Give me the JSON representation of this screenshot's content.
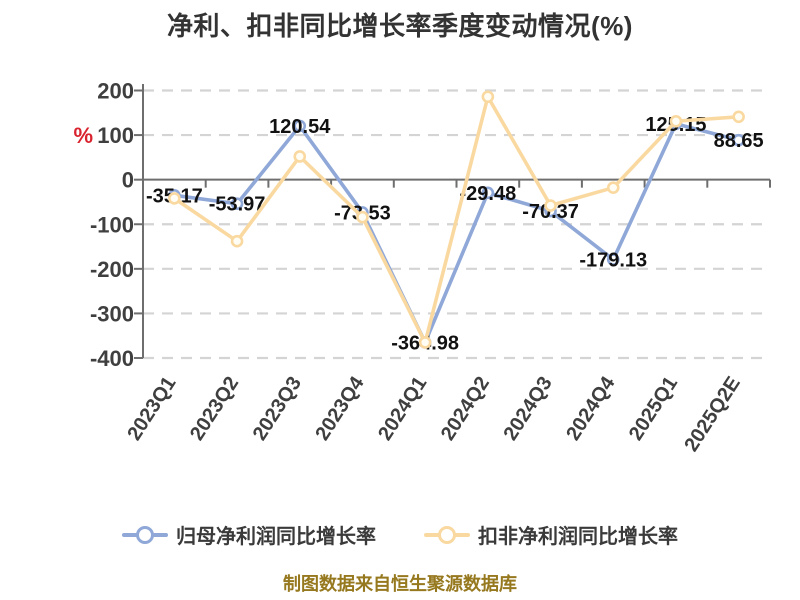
{
  "title": "净利、扣非同比增长率季度变动情况(%)",
  "footer": "制图数据来自恒生聚源数据库",
  "chart_data": {
    "type": "line",
    "title": "净利、扣非同比增长率季度变动情况(%)",
    "categories": [
      "2023Q1",
      "2023Q2",
      "2023Q3",
      "2023Q4",
      "2024Q1",
      "2024Q2",
      "2024Q3",
      "2024Q4",
      "2025Q1",
      "2025Q2E"
    ],
    "series": [
      {
        "name": "归母净利润同比增长率",
        "color": "#8FA8D8",
        "marker_fill": "#FFFFFF",
        "show_labels": true,
        "values": [
          -35.17,
          -53.97,
          120.54,
          -73.53,
          -364.98,
          -29.48,
          -70.37,
          -179.13,
          125.15,
          88.65
        ]
      },
      {
        "name": "扣非净利润同比增长率",
        "color": "#FAD9A1",
        "marker_fill": "#FFFDF4",
        "show_labels": false,
        "values": [
          -42,
          -138,
          52,
          -84,
          -365,
          186,
          -58,
          -18,
          131,
          141
        ]
      }
    ],
    "ylim": [
      -400,
      200
    ],
    "y_ticks": [
      200,
      100,
      0,
      -100,
      -200,
      -300,
      -400
    ],
    "unit_label": {
      "text": "%",
      "color": "#D9232E"
    },
    "grid": "dashed horizontal gridlines, solid zero axis",
    "legend_position": "bottom"
  },
  "legend": {
    "items": [
      {
        "label": "归母净利润同比增长率",
        "color": "#8FA8D8"
      },
      {
        "label": "扣非净利润同比增长率",
        "color": "#FAD9A1"
      }
    ]
  },
  "colors": {
    "title_text": "#333333",
    "axis_line": "#6E6E6E",
    "axis_label": "#3F3F3F",
    "gridline": "#D4D4D4",
    "data_label": "#111111",
    "footer_text": "#96781E",
    "unit_percent": "#D9232E",
    "background": "#FFFFFF"
  }
}
